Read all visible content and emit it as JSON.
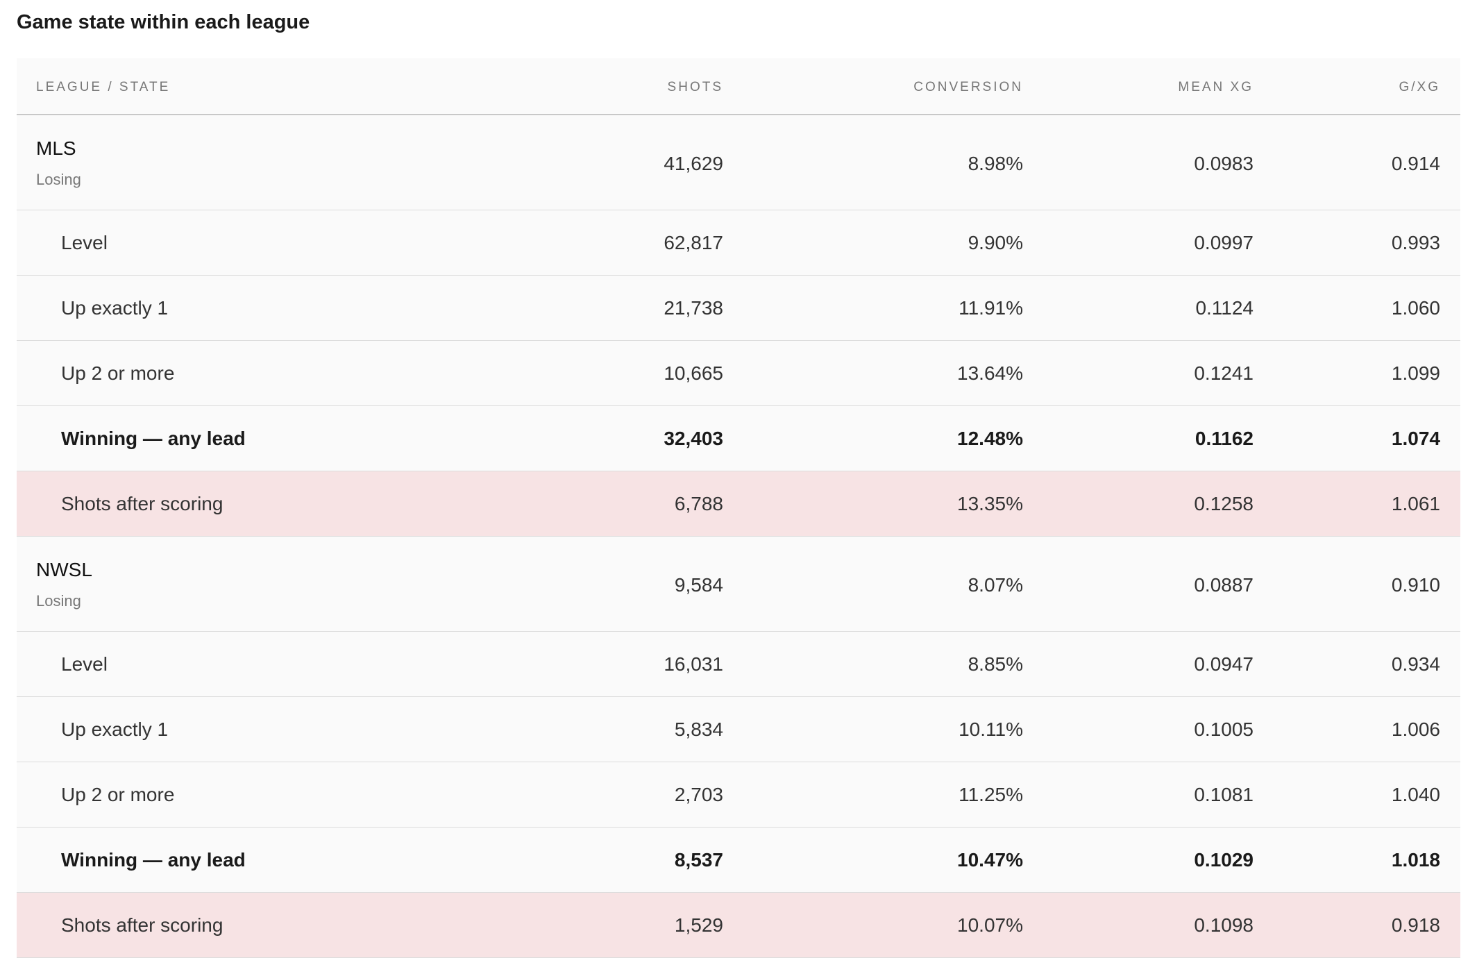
{
  "title": "Game state within each league",
  "table": {
    "columns": [
      "LEAGUE / STATE",
      "SHOTS",
      "CONVERSION",
      "MEAN XG",
      "G/XG"
    ],
    "groups": [
      {
        "name": "MLS",
        "rows": [
          [
            "Losing",
            "41,629",
            "8.98%",
            "0.0983",
            "0.914"
          ],
          [
            "Level",
            "62,817",
            "9.90%",
            "0.0997",
            "0.993"
          ],
          [
            "Up exactly 1",
            "21,738",
            "11.91%",
            "0.1124",
            "1.060"
          ],
          [
            "Up 2 or more",
            "10,665",
            "13.64%",
            "0.1241",
            "1.099"
          ],
          [
            "Winning — any lead",
            "32,403",
            "12.48%",
            "0.1162",
            "1.074"
          ],
          [
            "Shots after scoring",
            "6,788",
            "13.35%",
            "0.1258",
            "1.061"
          ]
        ]
      },
      {
        "name": "NWSL",
        "rows": [
          [
            "Losing",
            "9,584",
            "8.07%",
            "0.0887",
            "0.910"
          ],
          [
            "Level",
            "16,031",
            "8.85%",
            "0.0947",
            "0.934"
          ],
          [
            "Up exactly 1",
            "5,834",
            "10.11%",
            "0.1005",
            "1.006"
          ],
          [
            "Up 2 or more",
            "2,703",
            "11.25%",
            "0.1081",
            "1.040"
          ],
          [
            "Winning — any lead",
            "8,537",
            "10.47%",
            "0.1029",
            "1.018"
          ],
          [
            "Shots after scoring",
            "1,529",
            "10.07%",
            "0.1098",
            "0.918"
          ]
        ]
      }
    ]
  }
}
